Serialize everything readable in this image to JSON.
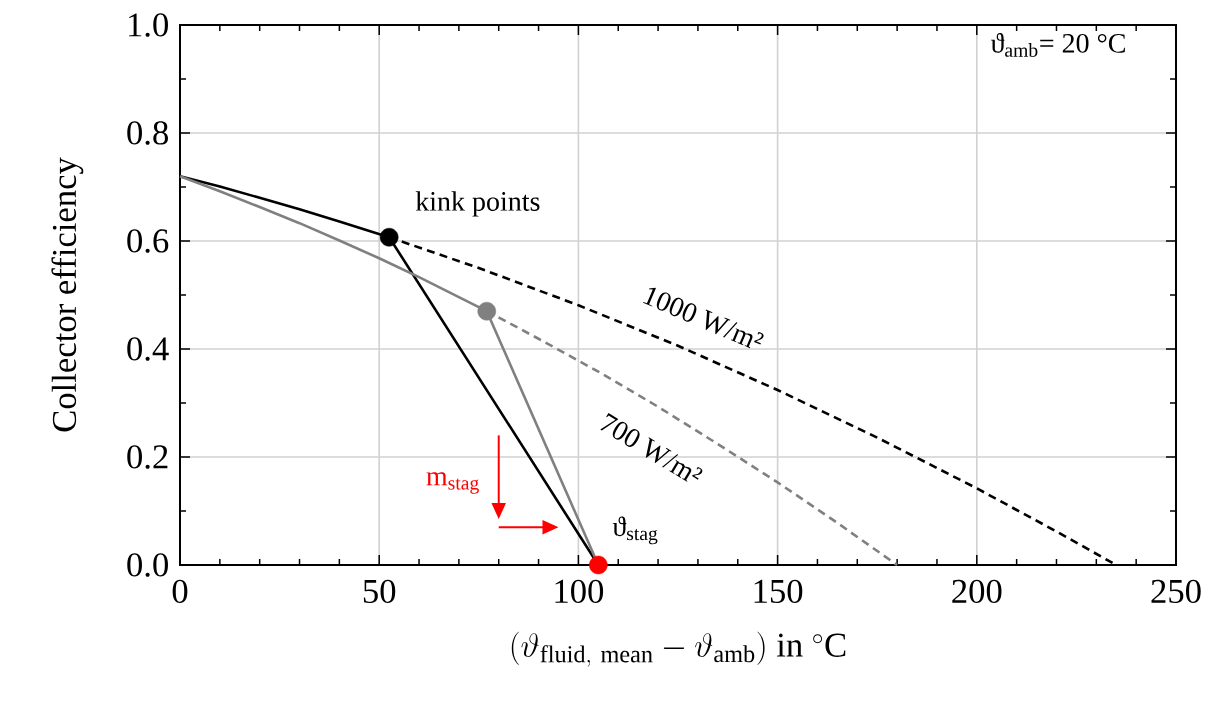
{
  "chart_data": {
    "type": "line",
    "xlabel": "(\\vartheta_{\\mathrm{fluid,\\ mean}} - \\vartheta_{\\mathrm{amb}})\\ \\mathrm{in}\\ {}^{\\circ}\\mathrm{C}",
    "ylabel": "Collector efficiency",
    "xlim": [
      0,
      250
    ],
    "ylim": [
      0,
      1
    ],
    "xticks": [
      0,
      50,
      100,
      150,
      200,
      250
    ],
    "yticks": [
      {
        "value": 0,
        "label": "0.0"
      },
      {
        "value": 0.2,
        "label": "0.2"
      },
      {
        "value": 0.4,
        "label": "0.4"
      },
      {
        "value": 0.6,
        "label": "0.6"
      },
      {
        "value": 0.8,
        "label": "0.8"
      },
      {
        "value": 1,
        "label": "1.0"
      }
    ],
    "grid": true,
    "series": [
      {
        "color": "#000000",
        "line_style": "solid",
        "x": [
          0,
          10,
          20,
          30,
          40,
          52.5,
          105
        ],
        "values": [
          0.72,
          0.701,
          0.68,
          0.659,
          0.636,
          0.607,
          0
        ]
      },
      {
        "color": "#000000",
        "line_style": "dashed",
        "x": [
          52.5,
          75,
          100,
          125,
          150,
          175,
          200,
          220,
          235
        ],
        "values": [
          0.607,
          0.55,
          0.481,
          0.406,
          0.324,
          0.236,
          0.142,
          0.062,
          0
        ]
      },
      {
        "color": "#808080",
        "line_style": "solid",
        "x": [
          0,
          10,
          20,
          30,
          40,
          50,
          60,
          70,
          77,
          105
        ],
        "values": [
          0.72,
          0.692,
          0.663,
          0.633,
          0.601,
          0.568,
          0.533,
          0.496,
          0.47,
          0
        ]
      },
      {
        "color": "#808080",
        "line_style": "dashed",
        "x": [
          77,
          90,
          105,
          120,
          135,
          150,
          165,
          180
        ],
        "values": [
          0.47,
          0.419,
          0.358,
          0.293,
          0.224,
          0.153,
          0.078,
          0
        ]
      },
      {
        "type": "scatter",
        "color": "#000000",
        "marker": "circle",
        "x": [
          52.5
        ],
        "values": [
          0.607
        ]
      },
      {
        "type": "scatter",
        "color": "#808080",
        "marker": "circle",
        "x": [
          77
        ],
        "values": [
          0.47
        ]
      },
      {
        "type": "scatter",
        "color": "#ff0000",
        "marker": "circle",
        "x": [
          105
        ],
        "values": [
          0
        ]
      }
    ],
    "annotations": [
      "ϑ$_{amb}$= 20 °C",
      {
        "text": "kink points",
        "x": 52.5,
        "y": 0.607
      },
      {
        "text": "1000 W/m²",
        "x": 128,
        "y": 0.4
      },
      {
        "text": "700 W/m²",
        "x": 123.5,
        "y": 0.28
      },
      "m$_{stag}$",
      {
        "text": "ϑ$_{stag}$",
        "x": 105,
        "y": 0
      }
    ]
  }
}
